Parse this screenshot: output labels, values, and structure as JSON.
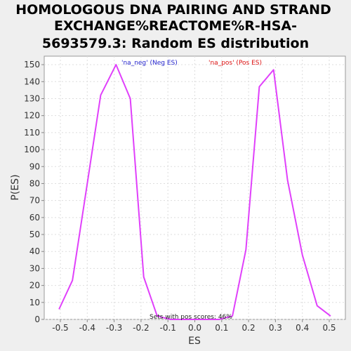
{
  "chart_data": {
    "type": "line",
    "title_lines": [
      "HOMOLOGOUS DNA PAIRING AND STRAND",
      "EXCHANGE%REACTOME%R-HSA-",
      "5693579.3: Random ES distribution"
    ],
    "xlabel": "ES",
    "ylabel": "P(ES)",
    "xlim": [
      -0.56,
      0.56
    ],
    "ylim": [
      0,
      155
    ],
    "xticks": [
      -0.5,
      -0.4,
      -0.3,
      -0.2,
      -0.1,
      0.0,
      0.1,
      0.2,
      0.3,
      0.4,
      0.5
    ],
    "xtick_labels": [
      "-0.5",
      "-0.4",
      "-0.3",
      "-0.2",
      "-0.1",
      "0.0",
      "0.1",
      "0.2",
      "0.3",
      "0.4",
      "0.5"
    ],
    "yticks": [
      0,
      10,
      20,
      30,
      40,
      50,
      60,
      70,
      80,
      90,
      100,
      110,
      120,
      130,
      140,
      150
    ],
    "ytick_labels": [
      "0",
      "10",
      "20",
      "30",
      "40",
      "50",
      "60",
      "70",
      "80",
      "90",
      "100",
      "110",
      "120",
      "130",
      "140",
      "150"
    ],
    "grid": true,
    "series": [
      {
        "color": "#e040fb",
        "points": [
          [
            -0.505,
            6
          ],
          [
            -0.455,
            23
          ],
          [
            -0.4,
            80
          ],
          [
            -0.35,
            132
          ],
          [
            -0.293,
            150
          ],
          [
            -0.24,
            130
          ],
          [
            -0.19,
            25
          ],
          [
            -0.14,
            2
          ],
          [
            -0.09,
            0
          ],
          [
            0.0,
            0
          ],
          [
            0.09,
            0
          ],
          [
            0.14,
            2
          ],
          [
            0.19,
            41
          ],
          [
            0.24,
            137
          ],
          [
            0.293,
            147
          ],
          [
            0.345,
            82
          ],
          [
            0.4,
            38
          ],
          [
            0.455,
            8
          ],
          [
            0.505,
            2
          ]
        ]
      }
    ],
    "legend": [
      {
        "label": "'na_neg' (Neg ES)",
        "color": "#2222cc"
      },
      {
        "label": "'na_pos' (Pos ES)",
        "color": "#dd1111"
      }
    ],
    "annotation": "Sets with pos scores: 46%"
  }
}
